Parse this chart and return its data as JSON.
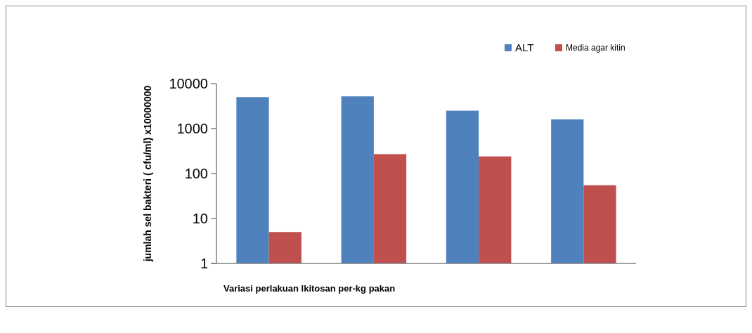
{
  "chart_data": {
    "type": "bar",
    "xlabel": "Variasi perlakuan lkitosan per-kg pakan",
    "ylabel": "jumlah  sel bakteri ( cfu/ml) x10000000",
    "categories": [
      null,
      null,
      null,
      null
    ],
    "series": [
      {
        "name": "ALT",
        "color": "#4f81bd",
        "values": [
          5000,
          5200,
          2500,
          1600
        ]
      },
      {
        "name": "Media agar kitin",
        "color": "#c0504d",
        "values": [
          5,
          270,
          240,
          55
        ]
      }
    ],
    "log": "y",
    "ylim": [
      1,
      10000
    ],
    "yticks": [
      1,
      10,
      100,
      1000,
      10000
    ],
    "grid": false,
    "legend": "top right"
  }
}
